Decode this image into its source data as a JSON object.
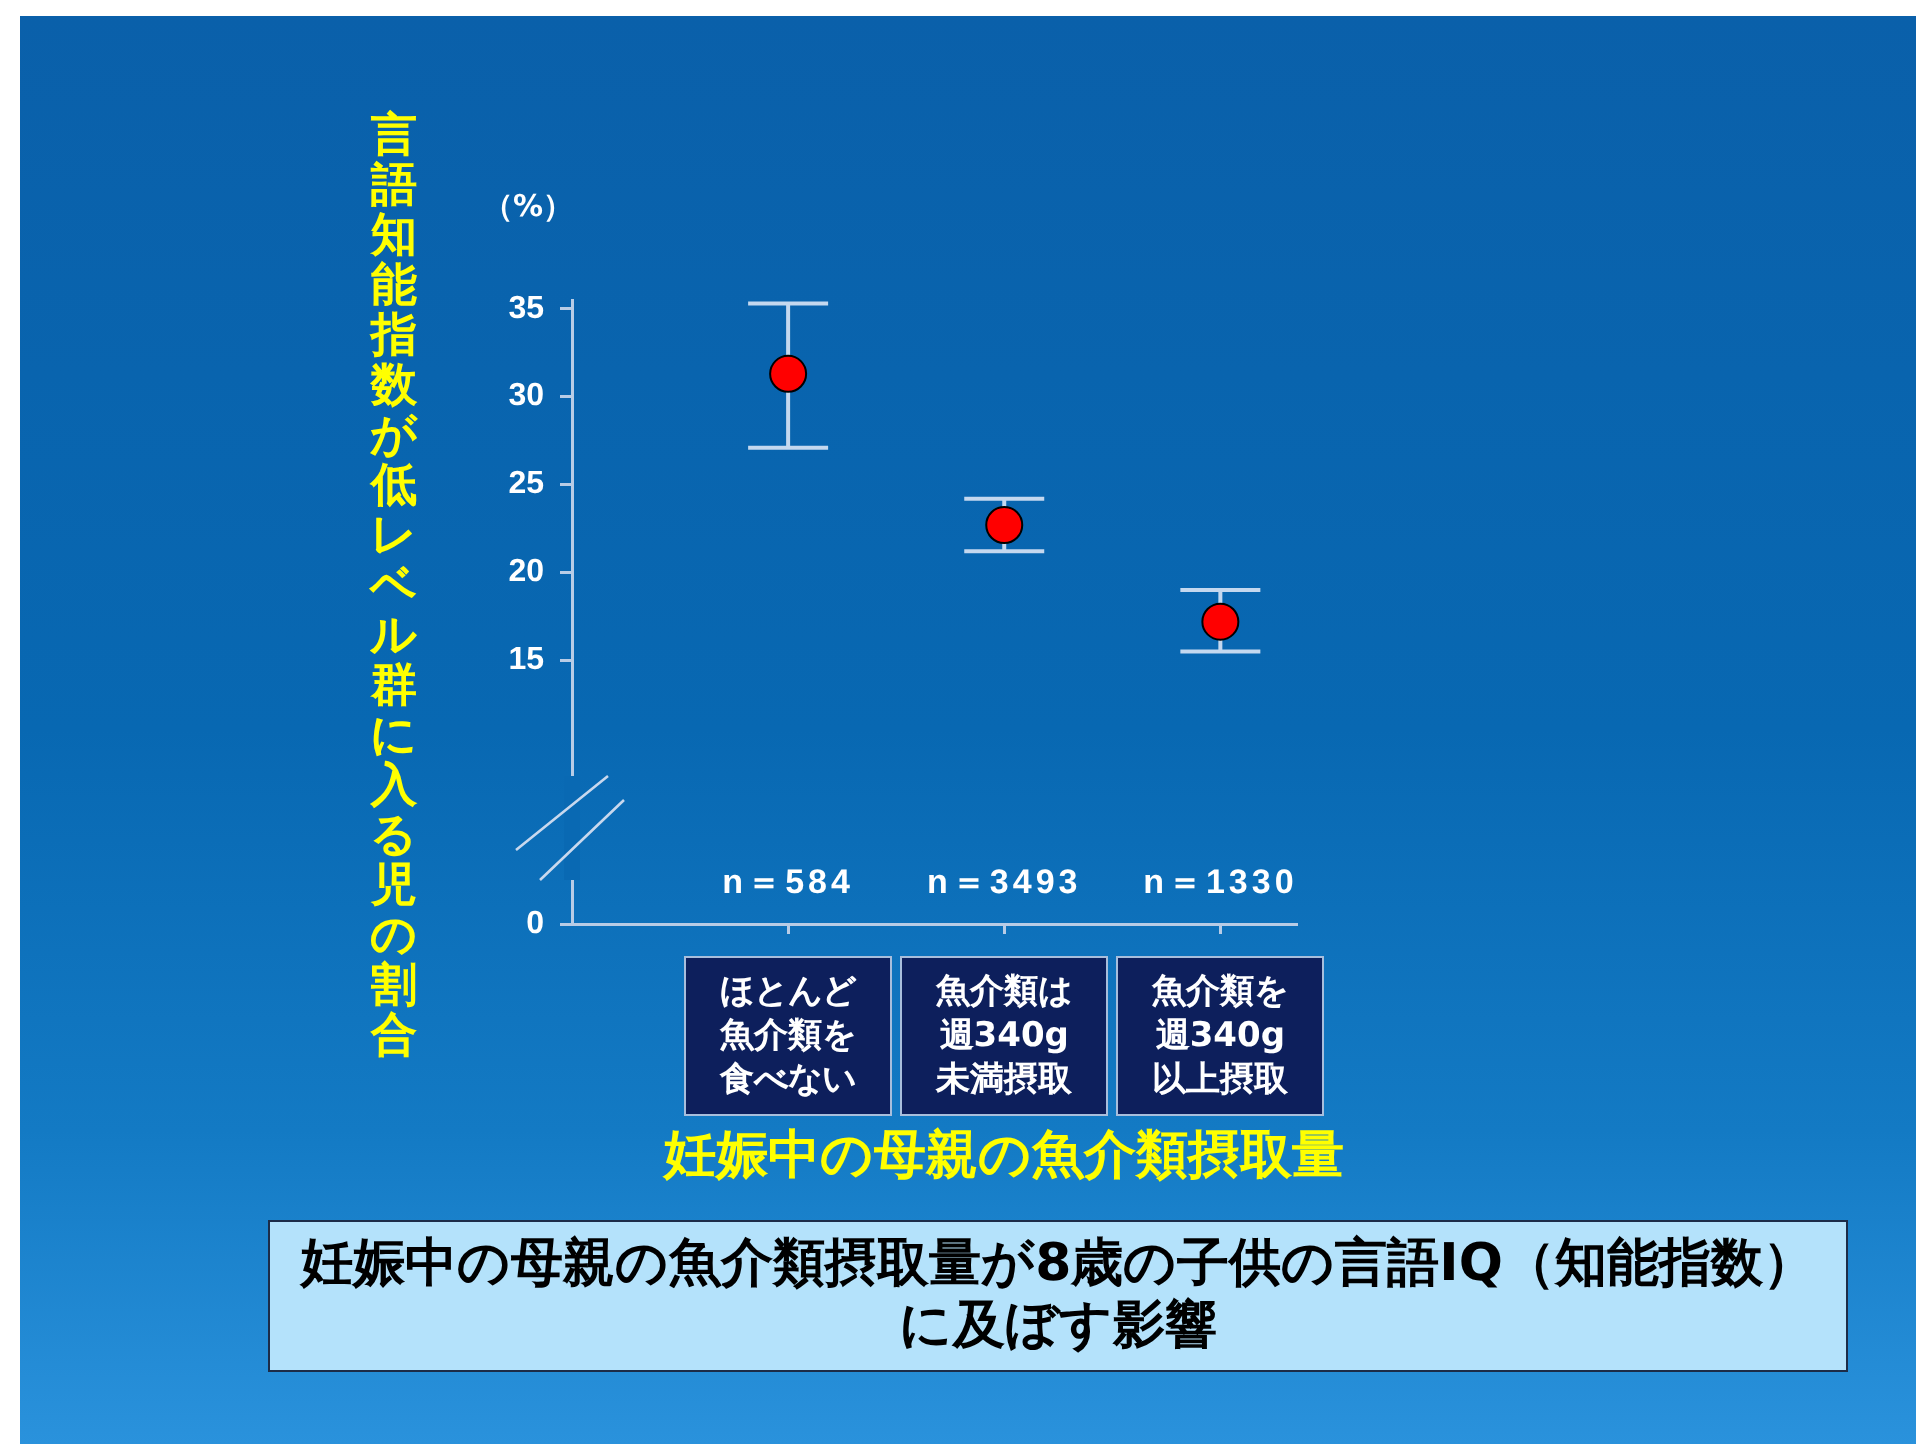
{
  "chart_data": {
    "type": "scatter",
    "title": "妊娠中の母親の魚介類摂取量が8歳の子供の言語IQ（知能指数）に及ぼす影響",
    "xlabel": "妊娠中の母親の魚介類摂取量",
    "ylabel": "言語知能指数が低レベル群に入る児の割合",
    "categories": [
      "ほとんど魚介類を食べない",
      "魚介類は週340g未満摂取",
      "魚介類を週340g以上摂取"
    ],
    "values": [
      31.3,
      22.7,
      17.2
    ],
    "errors": [
      [
        27.1,
        35.3
      ],
      [
        21.2,
        24.2
      ],
      [
        15.5,
        19.0
      ]
    ],
    "color": "#ff0000",
    "marker": "circle",
    "ylim": [
      0,
      35.5
    ],
    "yticks": [
      0,
      15,
      20,
      25,
      30,
      35
    ],
    "annotations": [
      "（%）",
      "n＝584",
      "n＝3493",
      "n＝1330"
    ]
  }
}
